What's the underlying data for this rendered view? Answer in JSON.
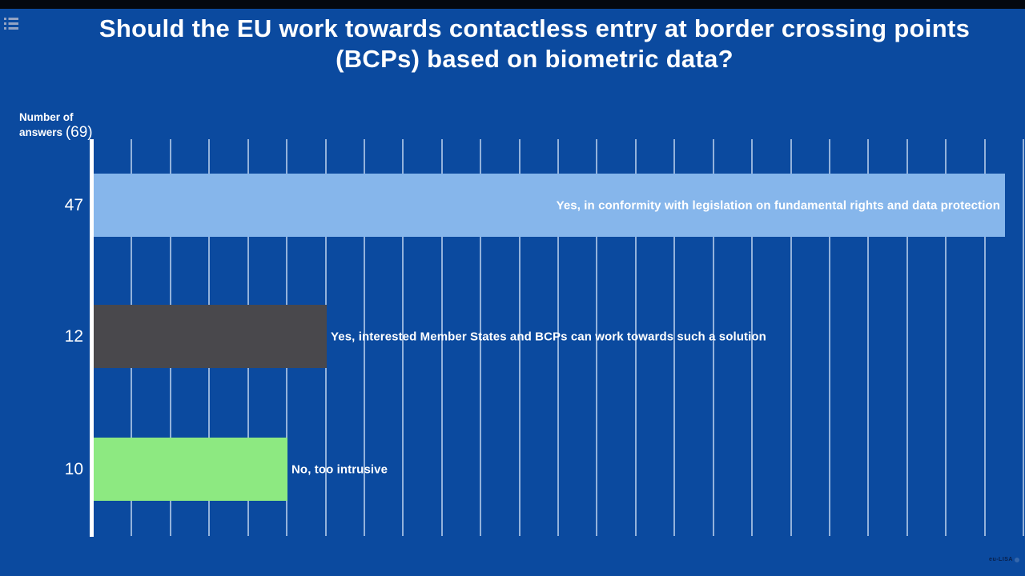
{
  "page": {
    "background_color": "#0b4a9f",
    "letterbox_color": "#04080f",
    "watermark": "eu-LISA"
  },
  "header": {
    "title_line1": "Should the EU work towards contactless entry at border crossing points",
    "title_line2": "(BCPs) based on biometric data?"
  },
  "y_axis_label": {
    "line1": "Number of",
    "line2": "answers",
    "total": "(69)"
  },
  "chart_data": {
    "type": "bar",
    "orientation": "horizontal",
    "title": "Should the EU work towards contactless entry at border crossing points (BCPs) based on biometric data?",
    "ylabel": "Number of answers (69)",
    "total_answers": 69,
    "categories": [
      "Yes, in conformity with legislation on fundamental rights and data protection",
      "Yes, interested Member States and BCPs can work towards such a solution",
      "No, too intrusive"
    ],
    "values": [
      47,
      12,
      10
    ],
    "bar_colors": [
      "#86b6eb",
      "#49484c",
      "#8de981"
    ],
    "label_placement": [
      "inside",
      "outside",
      "outside"
    ],
    "xlim": [
      0,
      48
    ],
    "gridline_step": 2,
    "grid": true,
    "gridline_color": "#c8dbf3",
    "axis_color": "#ffffff",
    "legend": "none",
    "x_tick_labels": []
  }
}
